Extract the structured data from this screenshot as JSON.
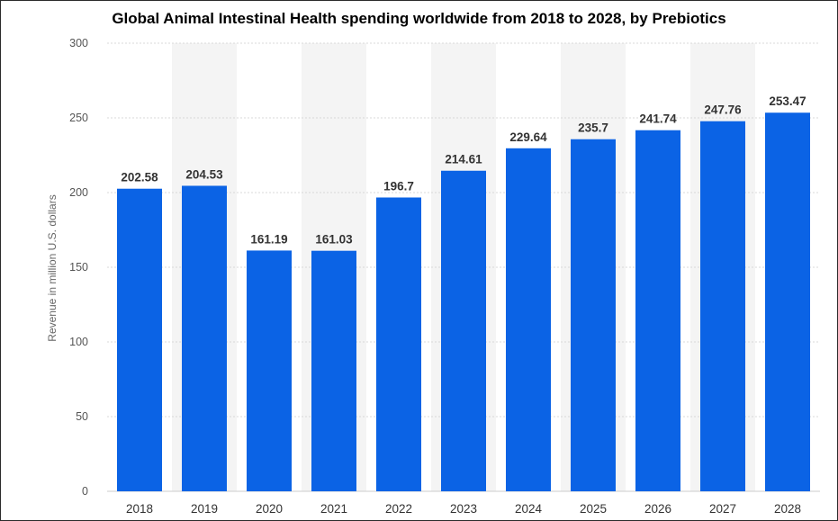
{
  "colors": {
    "bar": "#0b63e5",
    "grid": "#d9d9d9",
    "band": "#f4f4f4",
    "axis": "#cccccc",
    "text": "#333333"
  },
  "chart_data": {
    "type": "bar",
    "title": "Global Animal Intestinal Health spending worldwide from 2018 to 2028, by Prebiotics",
    "xlabel": "",
    "ylabel": "Revenue in million U.S. dollars",
    "categories": [
      "2018",
      "2019",
      "2020",
      "2021",
      "2022",
      "2023",
      "2024",
      "2025",
      "2026",
      "2027",
      "2028"
    ],
    "values": [
      202.58,
      204.53,
      161.19,
      161.03,
      196.7,
      214.61,
      229.64,
      235.7,
      241.74,
      247.76,
      253.47
    ],
    "data_labels": [
      "202.58",
      "204.53",
      "161.19",
      "161.03",
      "196.7",
      "214.61",
      "229.64",
      "235.7",
      "241.74",
      "247.76",
      "253.47"
    ],
    "ylim": [
      0,
      300
    ],
    "yticks": [
      0,
      50,
      100,
      150,
      200,
      250,
      300
    ],
    "grid": true,
    "legend": "none"
  }
}
